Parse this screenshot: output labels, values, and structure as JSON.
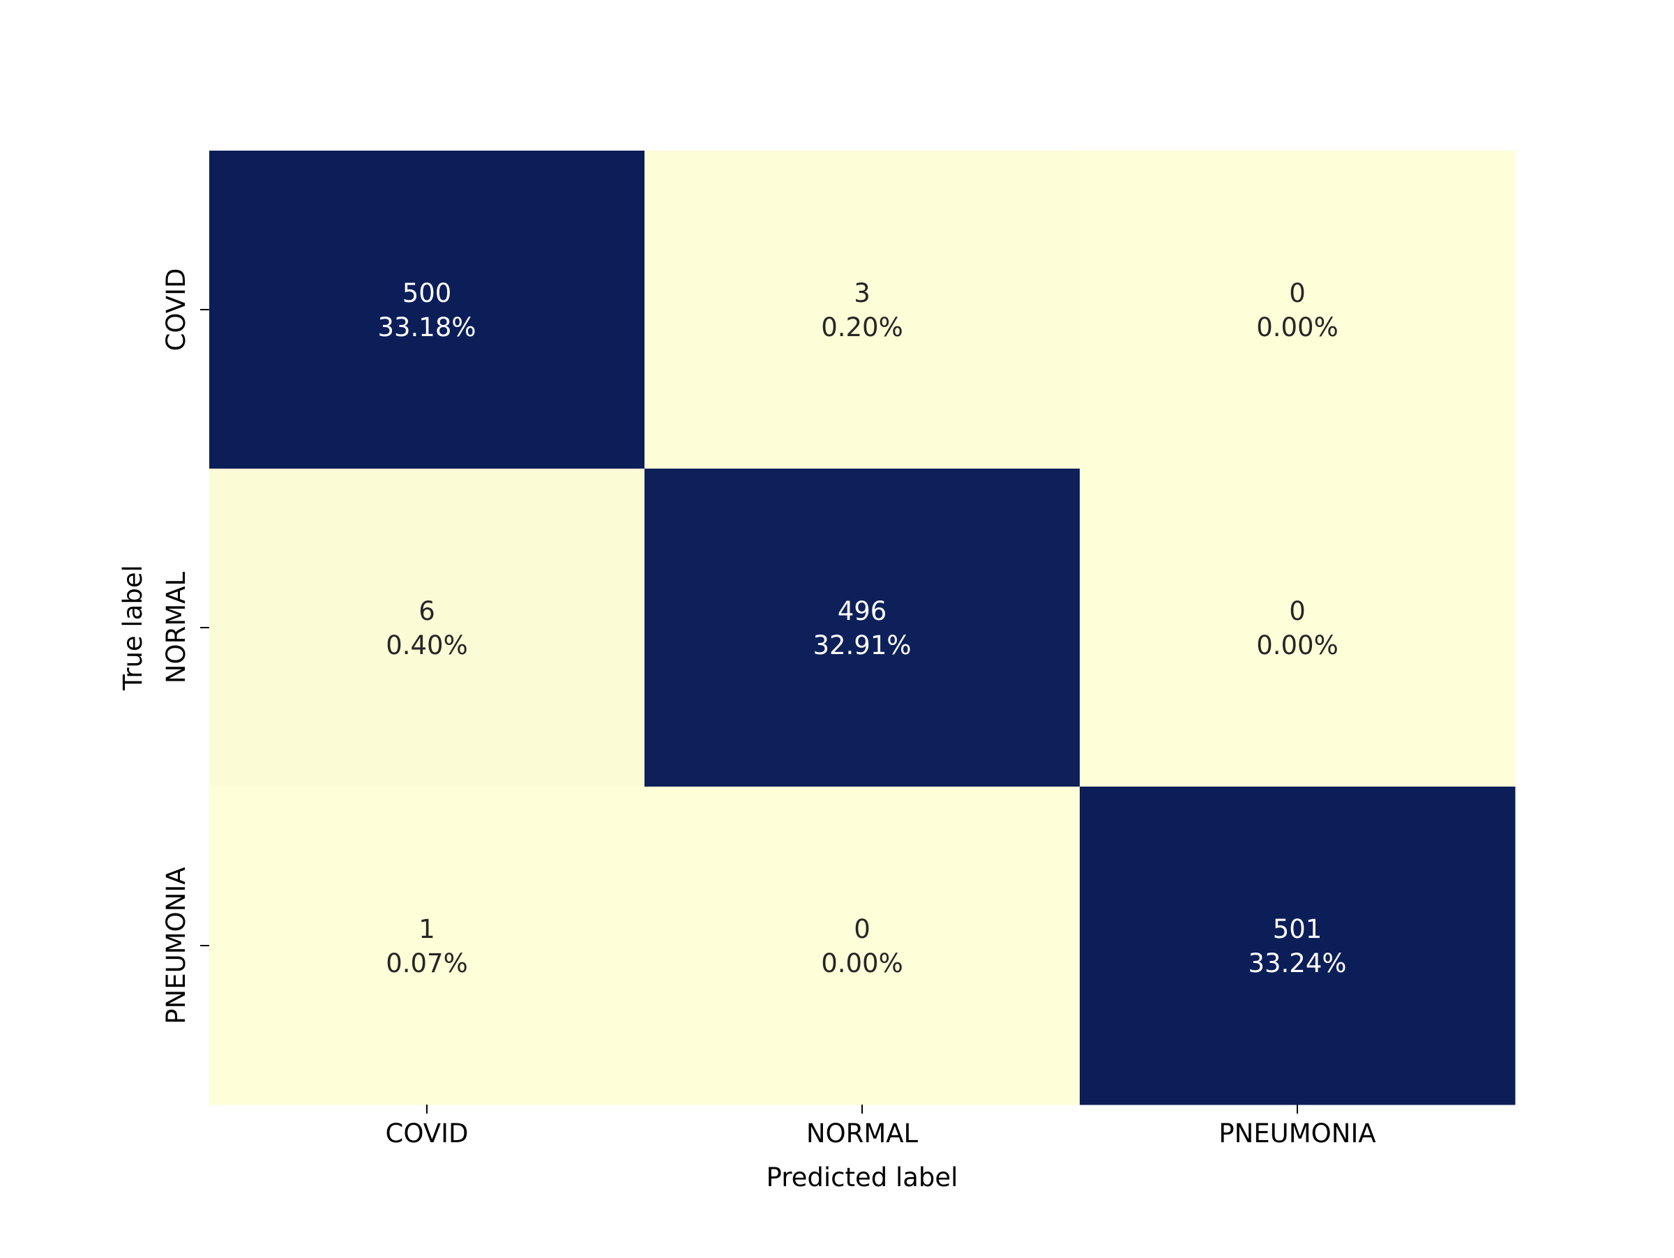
{
  "chart_data": {
    "type": "heatmap",
    "title": "",
    "xlabel": "Predicted label",
    "ylabel": "True label",
    "x_categories": [
      "COVID",
      "NORMAL",
      "PNEUMONIA"
    ],
    "y_categories": [
      "COVID",
      "NORMAL",
      "PNEUMONIA"
    ],
    "values": [
      [
        500,
        3,
        0
      ],
      [
        6,
        496,
        0
      ],
      [
        1,
        0,
        501
      ]
    ],
    "annotations": [
      [
        {
          "count": "500",
          "percent": "33.18%"
        },
        {
          "count": "3",
          "percent": "0.20%"
        },
        {
          "count": "0",
          "percent": "0.00%"
        }
      ],
      [
        {
          "count": "6",
          "percent": "0.40%"
        },
        {
          "count": "496",
          "percent": "32.91%"
        },
        {
          "count": "0",
          "percent": "0.00%"
        }
      ],
      [
        {
          "count": "1",
          "percent": "0.07%"
        },
        {
          "count": "0",
          "percent": "0.00%"
        },
        {
          "count": "501",
          "percent": "33.24%"
        }
      ]
    ],
    "colormap": "YlGnBu",
    "colors": {
      "high": "#0b1e58",
      "low": "#fefed8",
      "text_on_dark": "#ffffff",
      "text_on_light": "#262626"
    },
    "colorbar": false,
    "grid": false
  }
}
